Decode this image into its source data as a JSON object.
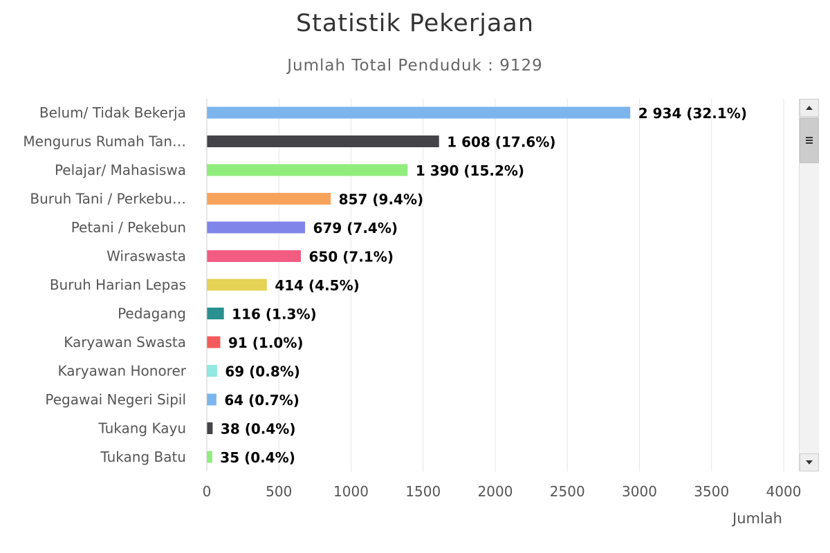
{
  "chart_data": {
    "type": "bar",
    "orientation": "horizontal",
    "title": "Statistik Pekerjaan",
    "subtitle": "Jumlah Total Penduduk : 9129",
    "xlabel": "Jumlah",
    "xlim": [
      0,
      4000
    ],
    "xticks": [
      "0",
      "500",
      "1000",
      "1500",
      "2000",
      "2500",
      "3000",
      "3500",
      "4000"
    ],
    "grid": true,
    "categories": [
      "Belum/ Tidak Bekerja",
      "Mengurus Rumah Tan…",
      "Pelajar/ Mahasiswa",
      "Buruh Tani / Perkebu…",
      "Petani / Pekebun",
      "Wiraswasta",
      "Buruh Harian Lepas",
      "Pedagang",
      "Karyawan Swasta",
      "Karyawan Honorer",
      "Pegawai Negeri Sipil",
      "Tukang Kayu",
      "Tukang Batu"
    ],
    "values": [
      2934,
      1608,
      1390,
      857,
      679,
      650,
      414,
      116,
      91,
      69,
      64,
      38,
      35
    ],
    "data_labels": [
      "2 934 (32.1%)",
      "1 608 (17.6%)",
      "1 390 (15.2%)",
      "857 (9.4%)",
      "679 (7.4%)",
      "650 (7.1%)",
      "414 (4.5%)",
      "116 (1.3%)",
      "91 (1.0%)",
      "69 (0.8%)",
      "64 (0.7%)",
      "38 (0.4%)",
      "35 (0.4%)"
    ],
    "colors": [
      "#7cb5ec",
      "#434348",
      "#90ed7d",
      "#f7a35c",
      "#8085e9",
      "#f15c80",
      "#e4d354",
      "#2b908f",
      "#f45b5b",
      "#91e8e1",
      "#7cb5ec",
      "#434348",
      "#90ed7d"
    ]
  },
  "scrollbar": {
    "up_icon": "triangle-up-icon",
    "down_icon": "triangle-down-icon",
    "thumb_icon": "grip-lines-icon"
  }
}
